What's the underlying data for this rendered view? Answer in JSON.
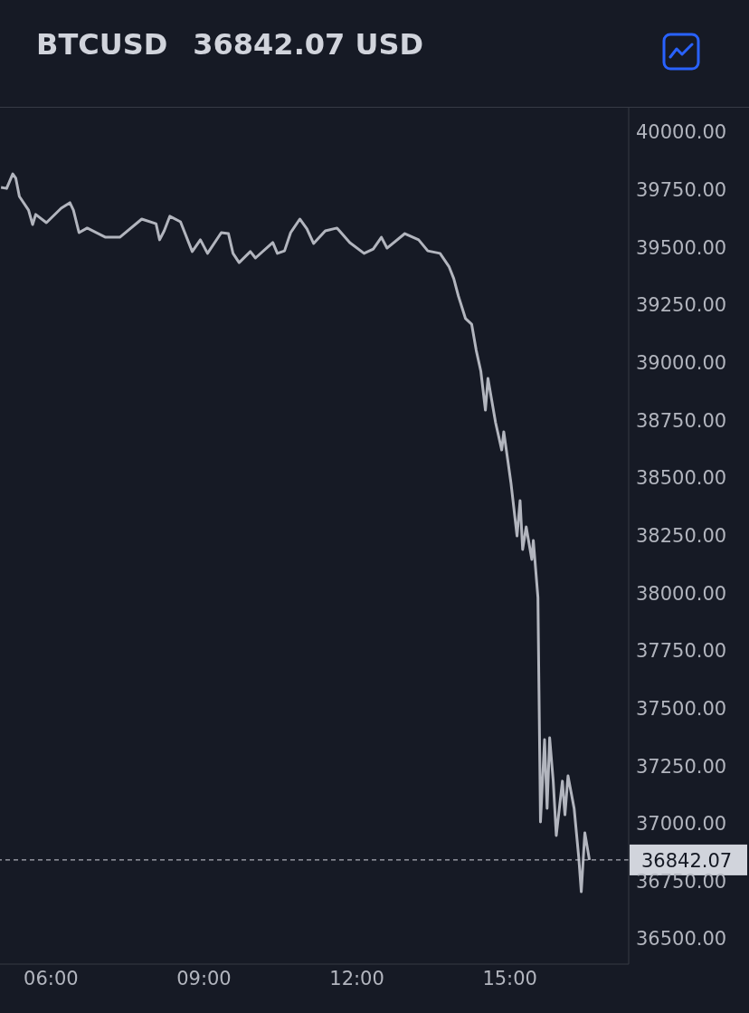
{
  "chart_data": {
    "type": "line",
    "title": "BTCUSD",
    "subtitle": "36842.07 USD",
    "x": [
      5.02,
      5.13,
      5.25,
      5.31,
      5.38,
      5.56,
      5.64,
      5.7,
      5.91,
      6.2,
      6.37,
      6.44,
      6.55,
      6.71,
      7.07,
      7.35,
      7.78,
      8.06,
      8.13,
      8.22,
      8.33,
      8.54,
      8.77,
      8.93,
      9.07,
      9.34,
      9.48,
      9.57,
      9.69,
      9.91,
      10.01,
      10.35,
      10.44,
      10.58,
      10.7,
      10.88,
      11.02,
      11.15,
      11.38,
      11.61,
      11.86,
      12.14,
      12.32,
      12.48,
      12.59,
      12.94,
      13.21,
      13.39,
      13.63,
      13.81,
      13.9,
      13.99,
      14.13,
      14.25,
      14.34,
      14.43,
      14.52,
      14.57,
      14.72,
      14.84,
      14.88,
      15.02,
      15.14,
      15.2,
      15.25,
      15.32,
      15.43,
      15.46,
      15.55,
      15.6,
      15.68,
      15.73,
      15.78,
      15.85,
      15.91,
      16.03,
      16.08,
      16.14,
      16.26,
      16.35,
      16.4,
      16.47,
      16.56
    ],
    "series": [
      {
        "color": "#b2b5be",
        "values": [
          39760,
          39756,
          39819,
          39800,
          39721,
          39662,
          39599,
          39643,
          39607,
          39670,
          39694,
          39662,
          39564,
          39584,
          39544,
          39544,
          39623,
          39603,
          39533,
          39572,
          39635,
          39611,
          39482,
          39533,
          39474,
          39564,
          39560,
          39474,
          39434,
          39482,
          39454,
          39521,
          39474,
          39485,
          39564,
          39623,
          39580,
          39517,
          39572,
          39584,
          39521,
          39474,
          39493,
          39544,
          39497,
          39560,
          39533,
          39485,
          39474,
          39415,
          39364,
          39289,
          39191,
          39167,
          39053,
          38963,
          38794,
          38932,
          38739,
          38621,
          38700,
          38480,
          38248,
          38401,
          38189,
          38287,
          38146,
          38228,
          37981,
          37007,
          37364,
          37066,
          37372,
          37184,
          36948,
          37184,
          37038,
          37207,
          37066,
          36854,
          36704,
          36960,
          36842
        ]
      }
    ],
    "xlim": [
      5,
      17.33
    ],
    "xticks": [
      {
        "value": 6,
        "label": "06:00"
      },
      {
        "value": 9,
        "label": "09:00"
      },
      {
        "value": 12,
        "label": "12:00"
      },
      {
        "value": 15,
        "label": "15:00"
      }
    ],
    "ylim": [
      36390,
      40110
    ],
    "yticks": [
      {
        "value": 36500,
        "label": "36500.00"
      },
      {
        "value": 36750,
        "label": "36750.00"
      },
      {
        "value": 37000,
        "label": "37000.00"
      },
      {
        "value": 37250,
        "label": "37250.00"
      },
      {
        "value": 37500,
        "label": "37500.00"
      },
      {
        "value": 37750,
        "label": "37750.00"
      },
      {
        "value": 38000,
        "label": "38000.00"
      },
      {
        "value": 38250,
        "label": "38250.00"
      },
      {
        "value": 38500,
        "label": "38500.00"
      },
      {
        "value": 38750,
        "label": "38750.00"
      },
      {
        "value": 39000,
        "label": "39000.00"
      },
      {
        "value": 39250,
        "label": "39250.00"
      },
      {
        "value": 39500,
        "label": "39500.00"
      },
      {
        "value": 39750,
        "label": "39750.00"
      },
      {
        "value": 40000,
        "label": "40000.00"
      }
    ],
    "ref_lines": [
      {
        "axis": "y",
        "value": 36842.07,
        "label": "36842.07",
        "color": "#d1d4dc",
        "line_style": "dashed"
      }
    ],
    "grid": false,
    "legend": false,
    "marker": "none",
    "line_style": "solid"
  }
}
